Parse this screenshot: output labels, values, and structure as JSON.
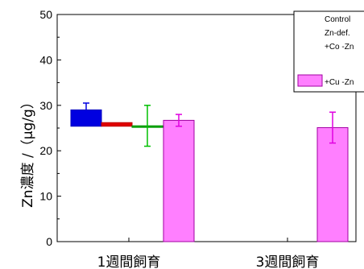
{
  "chart_data": {
    "type": "bar",
    "categories": [
      "1週間飼育",
      "3週間飼育"
    ],
    "ylabel": "Zn濃度 /（μg/g）",
    "ylim": [
      0,
      50
    ],
    "yticks": [
      "0",
      "10",
      "20",
      "30",
      "40",
      "50"
    ],
    "grid": false,
    "legend_position": "top-right",
    "series": [
      {
        "name": "Control",
        "color": "#0000e0",
        "values": [
          29,
          null
        ],
        "errors": [
          1.5,
          null
        ]
      },
      {
        "name": "Zn-def.",
        "color": "#e00000",
        "values": [
          26.2,
          null
        ],
        "errors": [
          0,
          null
        ]
      },
      {
        "name": "+Co -Zn",
        "color": "#00b000",
        "values": [
          25.5,
          null
        ],
        "errors": [
          4.5,
          null
        ]
      },
      {
        "name": "+Cu -Zn",
        "color": "#ff7fff",
        "values": [
          26.7,
          25.1
        ],
        "errors": [
          1.3,
          3.4
        ]
      }
    ]
  }
}
